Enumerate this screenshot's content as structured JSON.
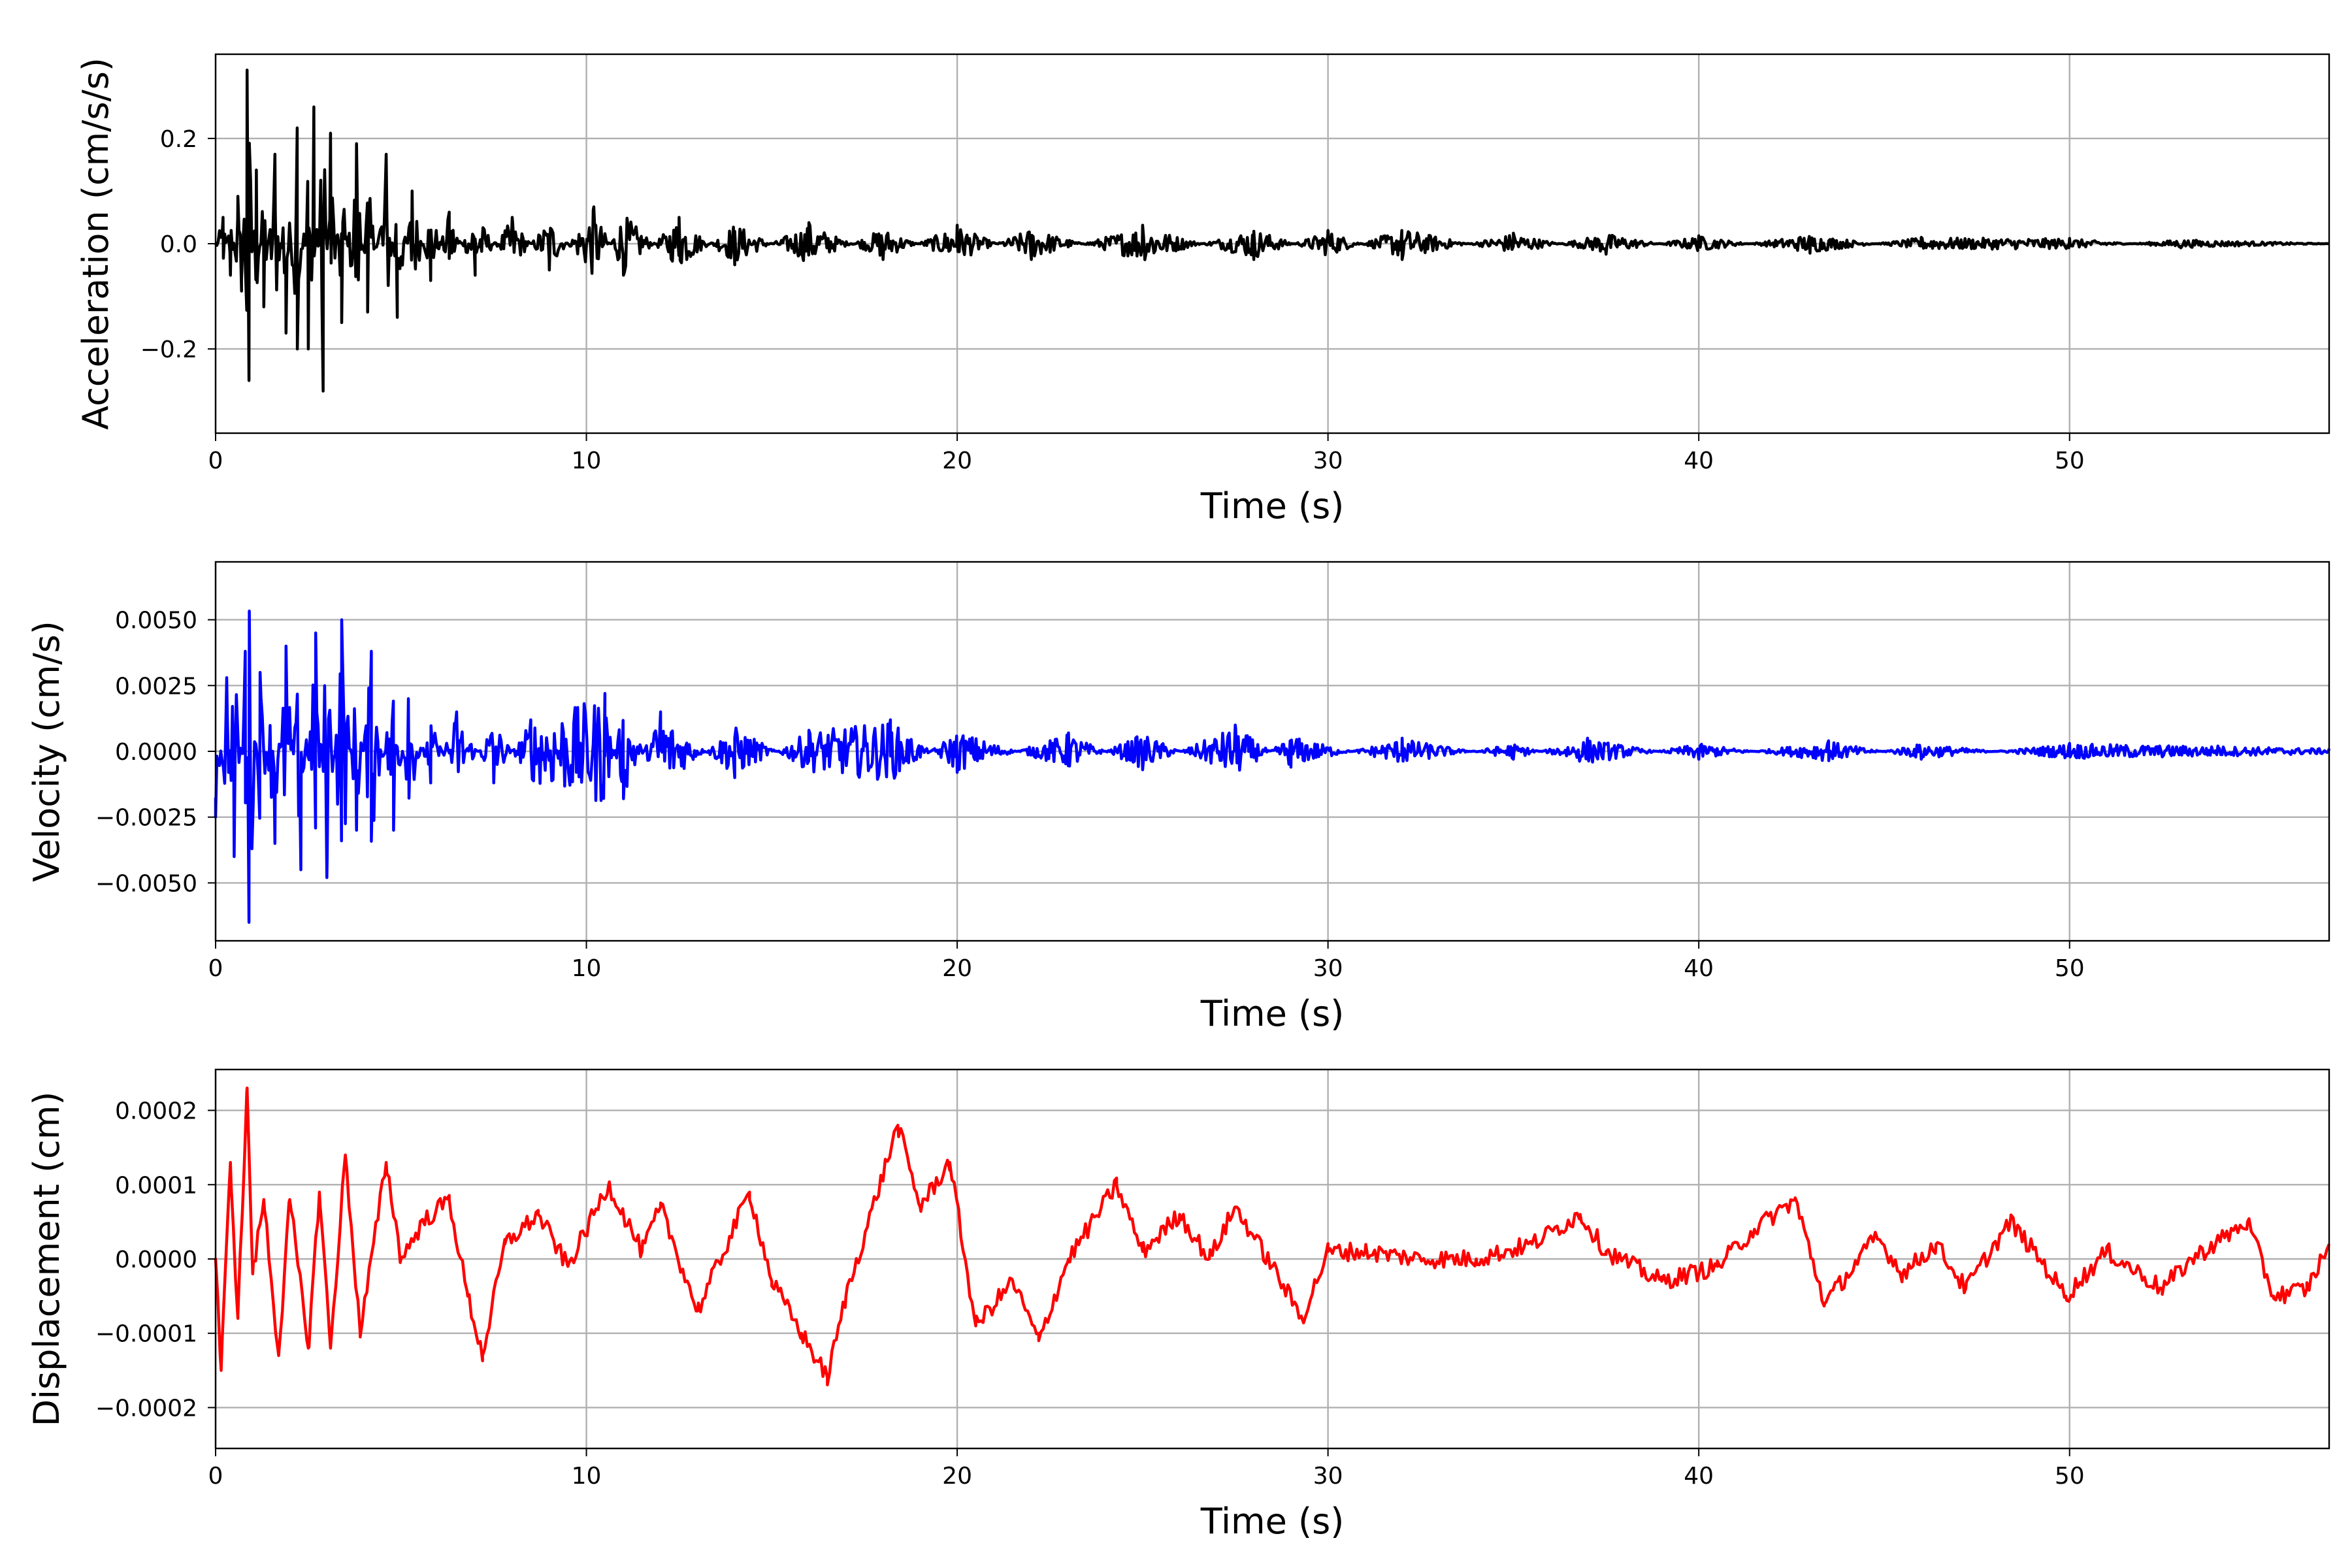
{
  "chart_data": [
    {
      "type": "line",
      "xlabel": "Time (s)",
      "ylabel": "Acceleration (cm/s/s)",
      "xlim": [
        0,
        57
      ],
      "ylim": [
        -0.36,
        0.36
      ],
      "xticks": [
        0,
        10,
        20,
        30,
        40,
        50
      ],
      "xtick_labels": [
        "0",
        "10",
        "20",
        "30",
        "40",
        "50"
      ],
      "yticks": [
        -0.2,
        0.0,
        0.2
      ],
      "ytick_labels": [
        "−0.2",
        "0.0",
        "0.2"
      ],
      "grid": true,
      "color": "#000000",
      "series": [
        {
          "points": [
            [
              0,
              0.0
            ],
            [
              0.2,
              0.05
            ],
            [
              0.4,
              -0.06
            ],
            [
              0.6,
              0.09
            ],
            [
              0.7,
              -0.09
            ],
            [
              0.85,
              0.33
            ],
            [
              0.9,
              -0.26
            ],
            [
              1.1,
              0.14
            ],
            [
              1.3,
              -0.12
            ],
            [
              1.6,
              0.17
            ],
            [
              1.9,
              -0.17
            ],
            [
              2.2,
              0.22
            ],
            [
              2.5,
              -0.2
            ],
            [
              2.65,
              0.26
            ],
            [
              2.9,
              -0.28
            ],
            [
              3.1,
              0.21
            ],
            [
              3.4,
              -0.15
            ],
            [
              3.8,
              0.19
            ],
            [
              4.1,
              -0.13
            ],
            [
              4.6,
              0.17
            ],
            [
              4.9,
              -0.14
            ],
            [
              5.3,
              0.1
            ],
            [
              5.8,
              -0.07
            ],
            [
              6.3,
              0.06
            ],
            [
              7.0,
              -0.06
            ],
            [
              8.0,
              0.05
            ],
            [
              9.0,
              -0.05
            ],
            [
              10.2,
              0.07
            ],
            [
              11.0,
              -0.06
            ],
            [
              12.5,
              0.05
            ],
            [
              14.0,
              -0.04
            ],
            [
              16.0,
              0.04
            ],
            [
              18.0,
              -0.03
            ],
            [
              20.0,
              0.035
            ],
            [
              22.0,
              -0.03
            ],
            [
              25.0,
              0.035
            ],
            [
              28.0,
              -0.03
            ],
            [
              30.0,
              0.025
            ],
            [
              32.0,
              -0.03
            ],
            [
              35.0,
              0.02
            ],
            [
              37.5,
              -0.02
            ],
            [
              40.0,
              0.015
            ],
            [
              43.0,
              -0.018
            ],
            [
              46.0,
              0.012
            ],
            [
              50.0,
              0.01
            ],
            [
              53.0,
              -0.008
            ],
            [
              57.0,
              0.0
            ]
          ]
        }
      ]
    },
    {
      "type": "line",
      "xlabel": "Time (s)",
      "ylabel": "Velocity (cm/s)",
      "xlim": [
        0,
        57
      ],
      "ylim": [
        -0.0072,
        0.0072
      ],
      "xticks": [
        0,
        10,
        20,
        30,
        40,
        50
      ],
      "xtick_labels": [
        "0",
        "10",
        "20",
        "30",
        "40",
        "50"
      ],
      "yticks": [
        -0.005,
        -0.0025,
        0.0,
        0.0025,
        0.005
      ],
      "ytick_labels": [
        "−0.0050",
        "−0.0025",
        "0.0000",
        "0.0025",
        "0.0050"
      ],
      "grid": true,
      "color": "#0000ff",
      "series": [
        {
          "points": [
            [
              0,
              -0.0025
            ],
            [
              0.3,
              0.0028
            ],
            [
              0.5,
              -0.004
            ],
            [
              0.8,
              0.0038
            ],
            [
              0.9,
              -0.0065
            ],
            [
              1.2,
              0.003
            ],
            [
              1.6,
              -0.0035
            ],
            [
              1.9,
              0.004
            ],
            [
              2.3,
              -0.0045
            ],
            [
              2.7,
              0.0045
            ],
            [
              3.0,
              -0.0048
            ],
            [
              3.4,
              0.005
            ],
            [
              3.8,
              -0.003
            ],
            [
              4.2,
              0.0038
            ],
            [
              4.8,
              -0.003
            ],
            [
              5.2,
              0.002
            ],
            [
              5.8,
              -0.0012
            ],
            [
              6.5,
              0.0015
            ],
            [
              7.5,
              -0.0012
            ],
            [
              8.5,
              0.0012
            ],
            [
              10.5,
              0.0022
            ],
            [
              11.0,
              -0.0018
            ],
            [
              12.0,
              0.0015
            ],
            [
              14.0,
              -0.001
            ],
            [
              16.0,
              0.0008
            ],
            [
              18.2,
              0.0012
            ],
            [
              20.0,
              -0.0008
            ],
            [
              23.0,
              0.0007
            ],
            [
              25.0,
              -0.0007
            ],
            [
              27.5,
              0.001
            ],
            [
              29.0,
              -0.0006
            ],
            [
              32.0,
              0.0005
            ],
            [
              35.0,
              -0.0003
            ],
            [
              37.0,
              0.0005
            ],
            [
              40.0,
              -0.0003
            ],
            [
              43.5,
              0.0004
            ],
            [
              46.0,
              -0.0003
            ],
            [
              50.0,
              0.0003
            ],
            [
              54.0,
              0.0002
            ],
            [
              57.0,
              0.0001
            ]
          ]
        }
      ]
    },
    {
      "type": "line",
      "xlabel": "Time (s)",
      "ylabel": "Displacement (cm)",
      "xlim": [
        0,
        57
      ],
      "ylim": [
        -0.000255,
        0.000255
      ],
      "xticks": [
        0,
        10,
        20,
        30,
        40,
        50
      ],
      "xtick_labels": [
        "0",
        "10",
        "20",
        "30",
        "40",
        "50"
      ],
      "yticks": [
        -0.0002,
        -0.0001,
        0.0,
        0.0001,
        0.0002
      ],
      "ytick_labels": [
        "−0.0002",
        "−0.0001",
        "0.0000",
        "0.0001",
        "0.0002"
      ],
      "grid": true,
      "color": "#ff0000",
      "series": [
        {
          "points": [
            [
              0,
              0.0
            ],
            [
              0.15,
              -0.00015
            ],
            [
              0.4,
              0.00013
            ],
            [
              0.6,
              -8e-05
            ],
            [
              0.85,
              0.00023
            ],
            [
              1.0,
              -2e-05
            ],
            [
              1.3,
              8e-05
            ],
            [
              1.7,
              -0.00013
            ],
            [
              2.0,
              8e-05
            ],
            [
              2.5,
              -0.00012
            ],
            [
              2.8,
              9e-05
            ],
            [
              3.1,
              -0.00012
            ],
            [
              3.5,
              0.00014
            ],
            [
              3.9,
              -0.0001
            ],
            [
              4.6,
              0.00013
            ],
            [
              5.0,
              0.0
            ],
            [
              5.6,
              5e-05
            ],
            [
              6.3,
              8e-05
            ],
            [
              6.8,
              -5e-05
            ],
            [
              7.2,
              -0.00013
            ],
            [
              7.8,
              2e-05
            ],
            [
              8.7,
              6e-05
            ],
            [
              9.5,
              -1e-05
            ],
            [
              10.6,
              0.0001
            ],
            [
              11.5,
              1e-05
            ],
            [
              12.0,
              7e-05
            ],
            [
              13.0,
              -7e-05
            ],
            [
              14.4,
              9e-05
            ],
            [
              15.0,
              -3e-05
            ],
            [
              15.8,
              -0.0001
            ],
            [
              16.5,
              -0.00016
            ],
            [
              17.0,
              -5e-05
            ],
            [
              18.4,
              0.00018
            ],
            [
              19.0,
              7e-05
            ],
            [
              19.8,
              0.00013
            ],
            [
              20.5,
              -9e-05
            ],
            [
              21.5,
              -3e-05
            ],
            [
              22.2,
              -0.00011
            ],
            [
              23.0,
              0.0
            ],
            [
              24.3,
              0.0001
            ],
            [
              25.0,
              1e-05
            ],
            [
              26.0,
              6e-05
            ],
            [
              26.8,
              0.0
            ],
            [
              27.5,
              7e-05
            ],
            [
              28.5,
              -1e-05
            ],
            [
              29.3,
              -8e-05
            ],
            [
              30.0,
              1e-05
            ],
            [
              31.0,
              1e-05
            ],
            [
              32.5,
              0.0
            ],
            [
              34.0,
              0.0
            ],
            [
              35.5,
              2e-05
            ],
            [
              36.8,
              6e-05
            ],
            [
              37.5,
              1e-05
            ],
            [
              39.0,
              -3e-05
            ],
            [
              40.5,
              -1e-05
            ],
            [
              41.5,
              4e-05
            ],
            [
              42.6,
              8e-05
            ],
            [
              43.4,
              -6e-05
            ],
            [
              44.8,
              3e-05
            ],
            [
              45.5,
              -2e-05
            ],
            [
              46.4,
              2e-05
            ],
            [
              47.2,
              -4e-05
            ],
            [
              48.4,
              5e-05
            ],
            [
              49.2,
              0.0
            ],
            [
              49.9,
              -5e-05
            ],
            [
              51.0,
              1e-05
            ],
            [
              52.5,
              -4e-05
            ],
            [
              53.3,
              0.0
            ],
            [
              54.8,
              5e-05
            ],
            [
              55.5,
              -5e-05
            ],
            [
              56.4,
              -4e-05
            ],
            [
              57.0,
              2e-05
            ]
          ]
        }
      ]
    }
  ]
}
